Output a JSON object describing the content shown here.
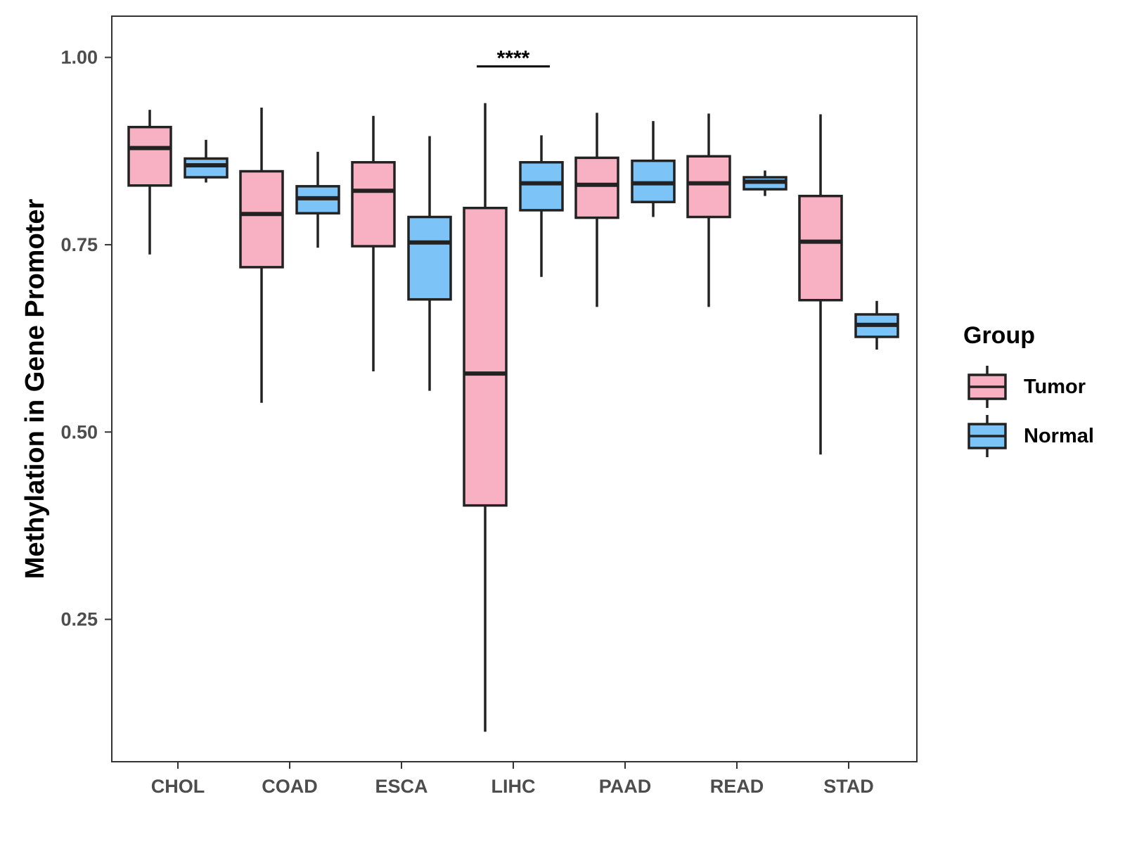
{
  "chart_data": {
    "type": "boxplot",
    "title": "",
    "xlabel": "",
    "ylabel": "Methylation in Gene Promoter",
    "ylim": [
      0.06,
      1.055
    ],
    "yticks": [
      0.25,
      0.5,
      0.75,
      1.0
    ],
    "ytick_labels": [
      "0.25",
      "0.50",
      "0.75",
      "1.00"
    ],
    "categories": [
      "CHOL",
      "COAD",
      "ESCA",
      "LIHC",
      "PAAD",
      "READ",
      "STAD"
    ],
    "grid": false,
    "legend": {
      "title": "Group",
      "position": "right",
      "entries": [
        "Tumor",
        "Normal"
      ]
    },
    "series": [
      {
        "name": "Tumor",
        "color": "#f8b0c3",
        "boxes": [
          {
            "category": "CHOL",
            "min": 0.737,
            "q1": 0.829,
            "median": 0.879,
            "q3": 0.907,
            "max": 0.93
          },
          {
            "category": "COAD",
            "min": 0.539,
            "q1": 0.72,
            "median": 0.791,
            "q3": 0.848,
            "max": 0.933
          },
          {
            "category": "ESCA",
            "min": 0.581,
            "q1": 0.748,
            "median": 0.822,
            "q3": 0.86,
            "max": 0.922
          },
          {
            "category": "LIHC",
            "min": 0.1,
            "q1": 0.402,
            "median": 0.578,
            "q3": 0.799,
            "max": 0.939
          },
          {
            "category": "PAAD",
            "min": 0.667,
            "q1": 0.786,
            "median": 0.83,
            "q3": 0.866,
            "max": 0.926
          },
          {
            "category": "READ",
            "min": 0.667,
            "q1": 0.787,
            "median": 0.832,
            "q3": 0.868,
            "max": 0.925
          },
          {
            "category": "STAD",
            "min": 0.47,
            "q1": 0.676,
            "median": 0.754,
            "q3": 0.815,
            "max": 0.924
          }
        ]
      },
      {
        "name": "Normal",
        "color": "#7cc3f8",
        "boxes": [
          {
            "category": "CHOL",
            "min": 0.833,
            "q1": 0.84,
            "median": 0.856,
            "q3": 0.865,
            "max": 0.89
          },
          {
            "category": "COAD",
            "min": 0.746,
            "q1": 0.792,
            "median": 0.812,
            "q3": 0.828,
            "max": 0.874
          },
          {
            "category": "ESCA",
            "min": 0.555,
            "q1": 0.677,
            "median": 0.753,
            "q3": 0.787,
            "max": 0.895
          },
          {
            "category": "LIHC",
            "min": 0.707,
            "q1": 0.796,
            "median": 0.832,
            "q3": 0.86,
            "max": 0.896
          },
          {
            "category": "PAAD",
            "min": 0.787,
            "q1": 0.807,
            "median": 0.832,
            "q3": 0.862,
            "max": 0.915
          },
          {
            "category": "READ",
            "min": 0.815,
            "q1": 0.824,
            "median": 0.834,
            "q3": 0.84,
            "max": 0.849
          },
          {
            "category": "STAD",
            "min": 0.61,
            "q1": 0.627,
            "median": 0.643,
            "q3": 0.657,
            "max": 0.675
          }
        ]
      }
    ],
    "annotations": [
      {
        "text": "****",
        "category": "LIHC",
        "y": 0.988
      }
    ]
  }
}
